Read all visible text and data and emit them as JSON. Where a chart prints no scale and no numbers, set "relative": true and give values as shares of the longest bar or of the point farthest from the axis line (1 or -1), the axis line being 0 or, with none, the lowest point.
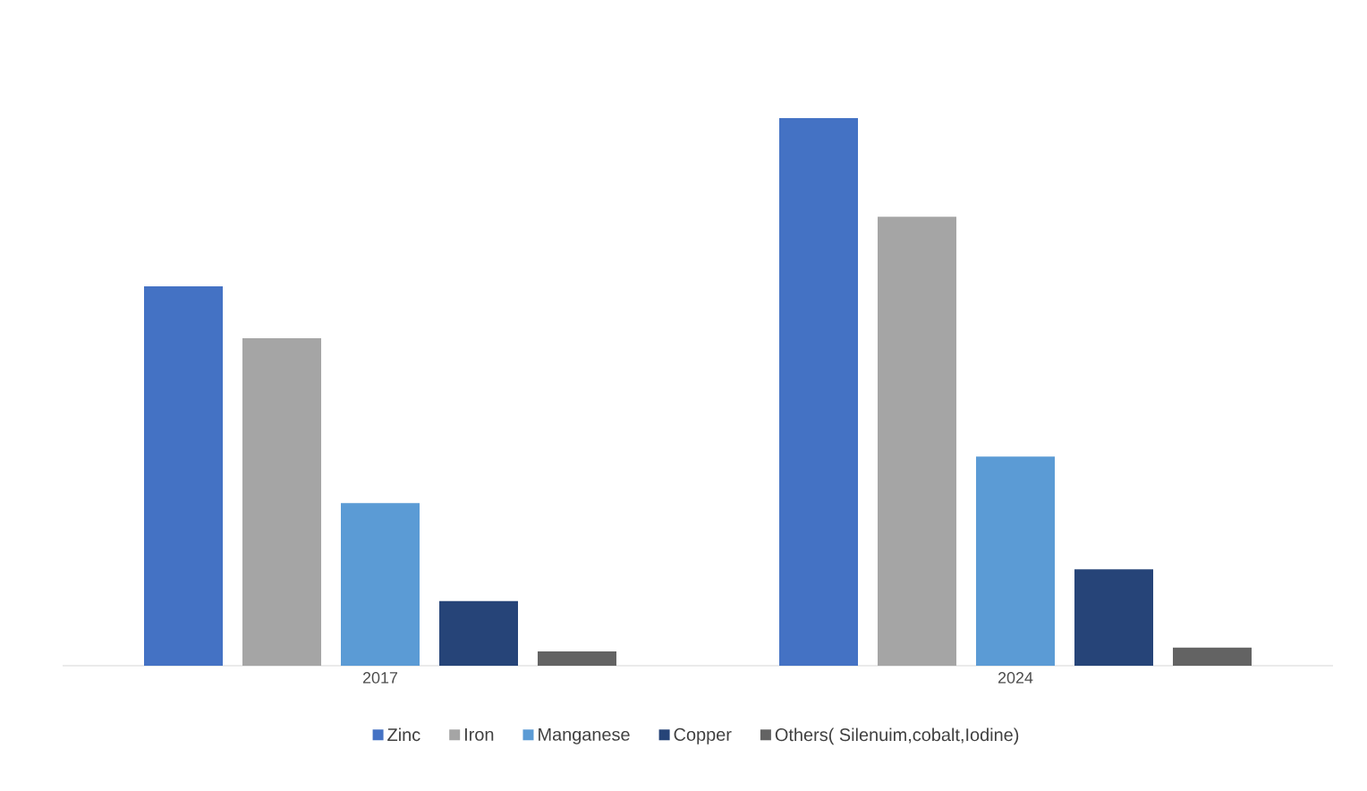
{
  "chart_data": {
    "type": "bar",
    "relative": true,
    "categories": [
      "2017",
      "2024"
    ],
    "legend": "bottom",
    "series": [
      {
        "name": "Zinc",
        "color": "#4472c4",
        "values": [
          0.693,
          1
        ]
      },
      {
        "name": "Iron",
        "color": "#a5a5a5",
        "values": [
          0.598,
          0.82
        ]
      },
      {
        "name": "Manganese",
        "color": "#5b9bd5",
        "values": [
          0.297,
          0.382
        ]
      },
      {
        "name": "Copper",
        "color": "#264478",
        "values": [
          0.118,
          0.176
        ]
      },
      {
        "name": "Others( Silenuim,cobalt,Iodine)",
        "color": "#636363",
        "values": [
          0.026,
          0.033
        ]
      }
    ]
  }
}
